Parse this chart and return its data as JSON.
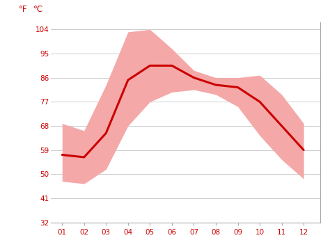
{
  "months": [
    1,
    2,
    3,
    4,
    5,
    6,
    7,
    8,
    9,
    10,
    11,
    12
  ],
  "mean_temp_c": [
    14.0,
    13.5,
    18.5,
    29.5,
    32.5,
    32.5,
    30.0,
    28.5,
    28.0,
    25.0,
    20.0,
    15.0
  ],
  "max_temp_c": [
    20.5,
    19.0,
    28.5,
    39.5,
    40.0,
    36.0,
    31.5,
    30.0,
    30.0,
    30.5,
    26.5,
    20.5
  ],
  "min_temp_c": [
    8.5,
    8.0,
    11.0,
    20.0,
    25.0,
    27.0,
    27.5,
    26.5,
    24.0,
    18.0,
    13.0,
    9.0
  ],
  "line_color": "#cc0000",
  "fill_color": "#f5a8a8",
  "background_color": "#ffffff",
  "grid_color": "#cccccc",
  "tick_color": "#cc0000",
  "ticks_f": [
    32,
    41,
    50,
    59,
    68,
    77,
    86,
    95,
    104
  ],
  "ticks_c": [
    0,
    5,
    10,
    15,
    20,
    25,
    30,
    35,
    40
  ],
  "ylim_c": [
    0,
    41.5
  ],
  "xlim": [
    0.5,
    12.75
  ],
  "xlabel_months": [
    "01",
    "02",
    "03",
    "04",
    "05",
    "06",
    "07",
    "08",
    "09",
    "10",
    "11",
    "12"
  ],
  "label_f": "°F",
  "label_c": "°C",
  "right_spine_color": "#aaaaaa"
}
